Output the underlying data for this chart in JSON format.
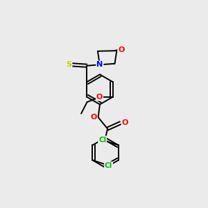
{
  "background_color": "#ebebeb",
  "bond_color": "#000000",
  "atom_colors": {
    "S": "#cccc00",
    "N": "#0000ff",
    "O": "#ff0000",
    "Cl": "#00bb00",
    "C": "#000000"
  },
  "figsize": [
    3.0,
    3.0
  ],
  "dpi": 100,
  "scale": 10.0
}
